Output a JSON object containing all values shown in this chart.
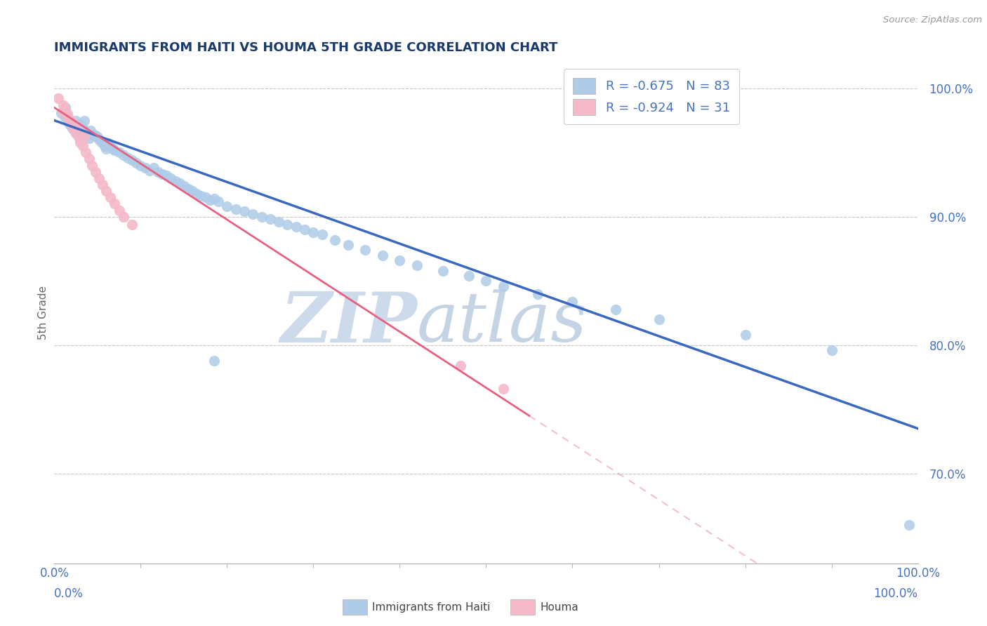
{
  "title": "IMMIGRANTS FROM HAITI VS HOUMA 5TH GRADE CORRELATION CHART",
  "source": "Source: ZipAtlas.com",
  "ylabel": "5th Grade",
  "legend_blue_label": "R = -0.675   N = 83",
  "legend_pink_label": "R = -0.924   N = 31",
  "legend_blue_color": "#aecce8",
  "legend_pink_color": "#f4b8c8",
  "scatter_blue_color": "#aecce8",
  "scatter_pink_color": "#f4b8c8",
  "line_blue_color": "#3a68bf",
  "line_pink_color": "#e86080",
  "title_color": "#1a3a6b",
  "axis_label_color": "#666666",
  "grid_color": "#c8c8c8",
  "tick_color": "#4472c4",
  "xmin": 0.0,
  "xmax": 100.0,
  "ymin": 63.0,
  "ymax": 102.0,
  "yticks": [
    70.0,
    80.0,
    90.0,
    100.0
  ],
  "scatter_blue_x": [
    0.8,
    1.2,
    1.6,
    1.8,
    2.0,
    2.2,
    2.5,
    2.8,
    3.0,
    3.2,
    3.4,
    3.6,
    3.8,
    4.0,
    4.2,
    4.5,
    4.8,
    5.0,
    5.2,
    5.5,
    5.8,
    6.0,
    6.2,
    6.5,
    6.8,
    7.0,
    7.5,
    8.0,
    8.5,
    9.0,
    9.5,
    10.0,
    10.5,
    11.0,
    11.5,
    12.0,
    12.5,
    13.0,
    13.5,
    14.0,
    14.5,
    15.0,
    15.5,
    16.0,
    16.5,
    17.0,
    17.5,
    18.0,
    18.5,
    19.0,
    20.0,
    21.0,
    22.0,
    23.0,
    24.0,
    25.0,
    26.0,
    27.0,
    28.0,
    29.0,
    30.0,
    31.0,
    32.5,
    34.0,
    36.0,
    38.0,
    40.0,
    42.0,
    45.0,
    48.0,
    50.0,
    52.0,
    56.0,
    60.0,
    65.0,
    70.0,
    80.0,
    90.0,
    99.0,
    3.5,
    2.5,
    1.3,
    18.5
  ],
  "scatter_blue_y": [
    98.1,
    97.8,
    97.5,
    97.2,
    97.0,
    96.8,
    96.6,
    96.4,
    97.2,
    97.0,
    96.8,
    96.5,
    96.3,
    96.1,
    96.7,
    96.4,
    96.3,
    96.2,
    96.0,
    95.8,
    95.5,
    95.3,
    95.7,
    95.5,
    95.3,
    95.2,
    95.0,
    94.8,
    94.6,
    94.4,
    94.2,
    94.0,
    93.8,
    93.6,
    93.8,
    93.5,
    93.3,
    93.2,
    93.0,
    92.8,
    92.6,
    92.4,
    92.2,
    92.0,
    91.8,
    91.6,
    91.5,
    91.3,
    91.4,
    91.2,
    90.8,
    90.6,
    90.4,
    90.2,
    90.0,
    89.8,
    89.6,
    89.4,
    89.2,
    89.0,
    88.8,
    88.6,
    88.2,
    87.8,
    87.4,
    87.0,
    86.6,
    86.2,
    85.8,
    85.4,
    85.0,
    84.6,
    84.0,
    83.4,
    82.8,
    82.0,
    80.8,
    79.6,
    66.0,
    97.5,
    97.5,
    98.5,
    78.8
  ],
  "scatter_pink_x": [
    0.5,
    1.0,
    1.2,
    1.5,
    1.8,
    2.0,
    2.2,
    2.5,
    2.8,
    3.0,
    3.3,
    3.6,
    4.0,
    4.4,
    4.8,
    5.2,
    5.6,
    6.0,
    6.5,
    7.0,
    7.5,
    8.0,
    9.0,
    1.0,
    1.5,
    2.0,
    2.5,
    3.0,
    3.5,
    47.0,
    52.0
  ],
  "scatter_pink_y": [
    99.2,
    98.7,
    98.4,
    98.0,
    97.6,
    97.2,
    96.9,
    96.5,
    96.2,
    95.8,
    95.5,
    95.0,
    94.5,
    94.0,
    93.5,
    93.0,
    92.5,
    92.0,
    91.5,
    91.0,
    90.5,
    90.0,
    89.4,
    98.2,
    97.8,
    97.4,
    97.0,
    96.6,
    96.2,
    78.4,
    76.6
  ],
  "blue_line_x0": 0.0,
  "blue_line_x1": 100.0,
  "blue_line_y0": 97.5,
  "blue_line_y1": 73.5,
  "pink_line_x0": 0.0,
  "pink_line_x1": 55.0,
  "pink_line_y0": 98.5,
  "pink_line_y1": 74.5,
  "pink_dash_x0": 55.0,
  "pink_dash_x1": 85.0,
  "pink_dash_slope": -0.436
}
